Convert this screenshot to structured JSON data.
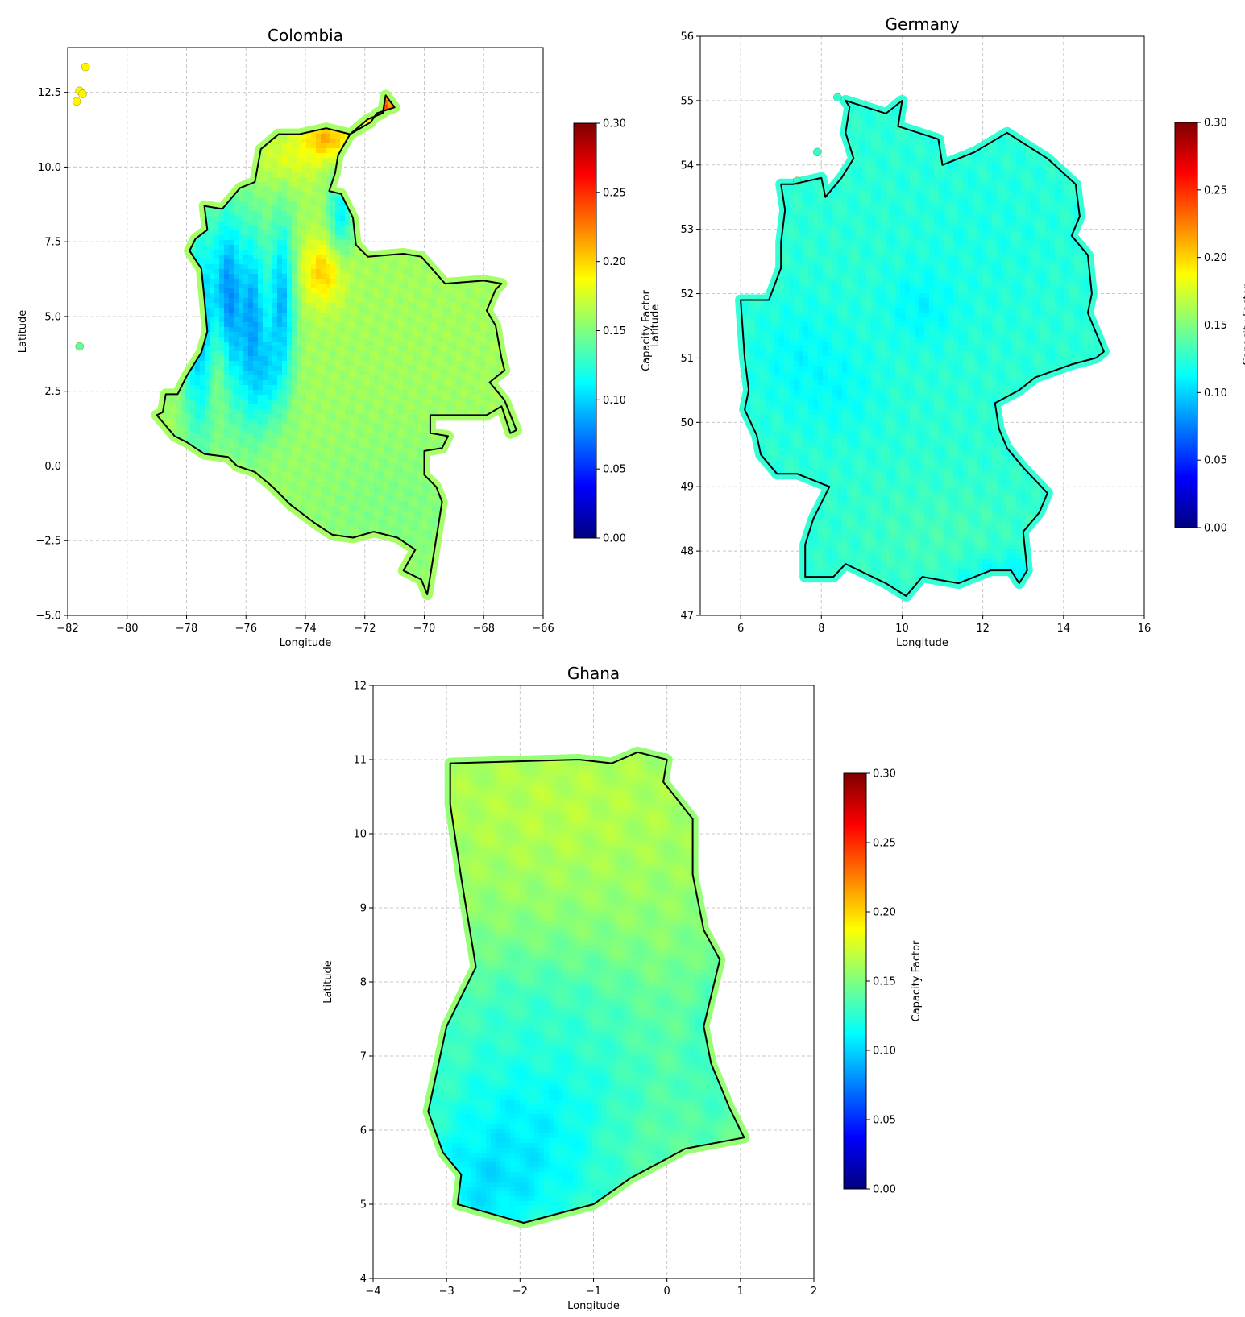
{
  "colors": {
    "grid": "#c8c8c8",
    "border": "#000000",
    "colormap": [
      "#00007f",
      "#0000ff",
      "#007fff",
      "#00ffff",
      "#7fff7f",
      "#ffff00",
      "#ff7f00",
      "#ff0000",
      "#7f0000"
    ]
  },
  "maps": [
    {
      "title": "Colombia",
      "xlabel": "Longitude",
      "ylabel": "Latitude",
      "xlim": [
        -82,
        -66
      ],
      "ylim": [
        -5.0,
        14.0
      ],
      "xticks": [
        -82,
        -80,
        -78,
        -76,
        -74,
        -72,
        -70,
        -68,
        -66
      ],
      "xtick_labels": [
        "−82",
        "−80",
        "−78",
        "−76",
        "−74",
        "−72",
        "−70",
        "−68",
        "−66"
      ],
      "yticks": [
        -5.0,
        -2.5,
        0.0,
        2.5,
        5.0,
        7.5,
        10.0,
        12.5
      ],
      "ytick_labels": [
        "−5.0",
        "−2.5",
        "0.0",
        "2.5",
        "5.0",
        "7.5",
        "10.0",
        "12.5"
      ],
      "grid": true,
      "colorbar": {
        "label": "Capacity Factor",
        "range": [
          0.0,
          0.3
        ],
        "ticks": [
          0.0,
          0.05,
          0.1,
          0.15,
          0.2,
          0.25,
          0.3
        ],
        "tick_labels": [
          "0.00",
          "0.05",
          "0.10",
          "0.15",
          "0.20",
          "0.25",
          "0.30"
        ]
      },
      "border": [
        [
          -71.3,
          12.4
        ],
        [
          -71.0,
          12.0
        ],
        [
          -71.6,
          11.8
        ],
        [
          -71.8,
          11.5
        ],
        [
          -72.5,
          11.1
        ],
        [
          -73.3,
          11.3
        ],
        [
          -74.2,
          11.1
        ],
        [
          -74.9,
          11.1
        ],
        [
          -75.5,
          10.6
        ],
        [
          -75.7,
          9.5
        ],
        [
          -76.2,
          9.3
        ],
        [
          -76.8,
          8.6
        ],
        [
          -77.4,
          8.7
        ],
        [
          -77.3,
          7.9
        ],
        [
          -77.7,
          7.6
        ],
        [
          -77.9,
          7.2
        ],
        [
          -77.5,
          6.6
        ],
        [
          -77.4,
          5.6
        ],
        [
          -77.3,
          4.5
        ],
        [
          -77.5,
          3.8
        ],
        [
          -78.0,
          3.0
        ],
        [
          -78.3,
          2.4
        ],
        [
          -78.7,
          2.4
        ],
        [
          -78.8,
          1.8
        ],
        [
          -79.0,
          1.7
        ],
        [
          -78.4,
          1.0
        ],
        [
          -78.0,
          0.8
        ],
        [
          -77.4,
          0.4
        ],
        [
          -76.6,
          0.3
        ],
        [
          -76.3,
          0.0
        ],
        [
          -75.7,
          -0.2
        ],
        [
          -75.1,
          -0.7
        ],
        [
          -74.5,
          -1.3
        ],
        [
          -73.7,
          -1.9
        ],
        [
          -73.1,
          -2.3
        ],
        [
          -72.4,
          -2.4
        ],
        [
          -71.7,
          -2.2
        ],
        [
          -70.9,
          -2.4
        ],
        [
          -70.3,
          -2.8
        ],
        [
          -70.7,
          -3.5
        ],
        [
          -70.1,
          -3.8
        ],
        [
          -69.9,
          -4.3
        ],
        [
          -69.4,
          -1.2
        ],
        [
          -69.6,
          -0.7
        ],
        [
          -70.0,
          -0.3
        ],
        [
          -70.0,
          0.5
        ],
        [
          -69.4,
          0.6
        ],
        [
          -69.2,
          1.0
        ],
        [
          -69.8,
          1.1
        ],
        [
          -69.8,
          1.7
        ],
        [
          -67.9,
          1.7
        ],
        [
          -67.4,
          2.0
        ],
        [
          -67.1,
          1.1
        ],
        [
          -66.9,
          1.2
        ],
        [
          -67.3,
          2.2
        ],
        [
          -67.8,
          2.8
        ],
        [
          -67.3,
          3.2
        ],
        [
          -67.4,
          3.6
        ],
        [
          -67.6,
          4.7
        ],
        [
          -67.9,
          5.2
        ],
        [
          -67.6,
          5.9
        ],
        [
          -67.4,
          6.1
        ],
        [
          -68.0,
          6.2
        ],
        [
          -69.3,
          6.1
        ],
        [
          -70.1,
          7.0
        ],
        [
          -70.7,
          7.1
        ],
        [
          -71.9,
          7.0
        ],
        [
          -72.3,
          7.4
        ],
        [
          -72.4,
          8.3
        ],
        [
          -72.8,
          9.1
        ],
        [
          -73.2,
          9.2
        ],
        [
          -73.0,
          9.8
        ],
        [
          -72.9,
          10.4
        ],
        [
          -72.5,
          11.1
        ],
        [
          -71.9,
          11.6
        ],
        [
          -71.4,
          11.8
        ],
        [
          -71.3,
          12.4
        ]
      ],
      "islands": [
        [
          -81.6,
          12.55
        ],
        [
          -81.4,
          13.35
        ],
        [
          -81.7,
          12.2
        ],
        [
          -81.5,
          12.45
        ],
        [
          -81.6,
          4.0
        ]
      ],
      "background_value": 0.16,
      "features": [
        {
          "lon": -77.5,
          "lat": 4.5,
          "sx": 0.45,
          "sy": 2.6,
          "value": 0.08,
          "weight": 0.85
        },
        {
          "lon": -76.6,
          "lat": 5.2,
          "sx": 0.35,
          "sy": 2.3,
          "value": 0.05,
          "weight": 0.8
        },
        {
          "lon": -75.8,
          "lat": 4.8,
          "sx": 0.35,
          "sy": 2.3,
          "value": 0.06,
          "weight": 0.75
        },
        {
          "lon": -76.9,
          "lat": 2.8,
          "sx": 0.3,
          "sy": 1.6,
          "value": 0.17,
          "weight": 0.6
        },
        {
          "lon": -74.8,
          "lat": 5.5,
          "sx": 0.3,
          "sy": 2.0,
          "value": 0.06,
          "weight": 0.7
        },
        {
          "lon": -75.3,
          "lat": 3.2,
          "sx": 0.4,
          "sy": 1.2,
          "value": 0.08,
          "weight": 0.65
        },
        {
          "lon": -73.4,
          "lat": 6.5,
          "sx": 0.5,
          "sy": 0.8,
          "value": 0.22,
          "weight": 0.7
        },
        {
          "lon": -73.3,
          "lat": 10.9,
          "sx": 0.6,
          "sy": 0.45,
          "value": 0.23,
          "weight": 0.8
        },
        {
          "lon": -71.6,
          "lat": 12.0,
          "sx": 0.5,
          "sy": 0.35,
          "value": 0.27,
          "weight": 0.9
        },
        {
          "lon": -74.5,
          "lat": 10.3,
          "sx": 0.9,
          "sy": 0.6,
          "value": 0.19,
          "weight": 0.6
        },
        {
          "lon": -72.8,
          "lat": 8.5,
          "sx": 0.3,
          "sy": 1.0,
          "value": 0.08,
          "weight": 0.6
        },
        {
          "lon": -71.0,
          "lat": -1.5,
          "sx": 2.5,
          "sy": 2.0,
          "value": 0.14,
          "weight": 0.5
        }
      ]
    },
    {
      "title": "Germany",
      "xlabel": "Longitude",
      "ylabel": "Latitude",
      "xlim": [
        5,
        16
      ],
      "ylim": [
        47,
        56
      ],
      "xticks": [
        6,
        8,
        10,
        12,
        14,
        16
      ],
      "xtick_labels": [
        "6",
        "8",
        "10",
        "12",
        "14",
        "16"
      ],
      "yticks": [
        47,
        48,
        49,
        50,
        51,
        52,
        53,
        54,
        55,
        56
      ],
      "ytick_labels": [
        "47",
        "48",
        "49",
        "50",
        "51",
        "52",
        "53",
        "54",
        "55",
        "56"
      ],
      "grid": true,
      "colorbar": {
        "label": "Capacity Factor",
        "range": [
          0.0,
          0.3
        ],
        "ticks": [
          0.0,
          0.05,
          0.1,
          0.15,
          0.2,
          0.25,
          0.3
        ],
        "tick_labels": [
          "0.00",
          "0.05",
          "0.10",
          "0.15",
          "0.20",
          "0.25",
          "0.30"
        ]
      },
      "border": [
        [
          8.6,
          55.0
        ],
        [
          9.6,
          54.8
        ],
        [
          10.0,
          55.0
        ],
        [
          9.9,
          54.6
        ],
        [
          10.9,
          54.4
        ],
        [
          11.0,
          54.0
        ],
        [
          11.8,
          54.2
        ],
        [
          12.6,
          54.5
        ],
        [
          13.6,
          54.1
        ],
        [
          14.3,
          53.7
        ],
        [
          14.4,
          53.2
        ],
        [
          14.2,
          52.9
        ],
        [
          14.6,
          52.6
        ],
        [
          14.7,
          52.0
        ],
        [
          14.6,
          51.7
        ],
        [
          15.0,
          51.1
        ],
        [
          14.8,
          51.0
        ],
        [
          14.2,
          50.9
        ],
        [
          13.3,
          50.7
        ],
        [
          12.9,
          50.5
        ],
        [
          12.3,
          50.3
        ],
        [
          12.4,
          49.9
        ],
        [
          12.6,
          49.6
        ],
        [
          13.0,
          49.3
        ],
        [
          13.6,
          48.9
        ],
        [
          13.4,
          48.6
        ],
        [
          13.0,
          48.3
        ],
        [
          13.1,
          47.7
        ],
        [
          12.9,
          47.5
        ],
        [
          12.7,
          47.7
        ],
        [
          12.2,
          47.7
        ],
        [
          11.4,
          47.5
        ],
        [
          10.5,
          47.6
        ],
        [
          10.1,
          47.3
        ],
        [
          9.6,
          47.5
        ],
        [
          8.6,
          47.8
        ],
        [
          8.3,
          47.6
        ],
        [
          7.6,
          47.6
        ],
        [
          7.6,
          48.1
        ],
        [
          7.8,
          48.5
        ],
        [
          8.2,
          49.0
        ],
        [
          7.4,
          49.2
        ],
        [
          6.9,
          49.2
        ],
        [
          6.5,
          49.5
        ],
        [
          6.4,
          49.8
        ],
        [
          6.1,
          50.2
        ],
        [
          6.2,
          50.5
        ],
        [
          6.1,
          51.0
        ],
        [
          6.0,
          51.9
        ],
        [
          6.7,
          51.9
        ],
        [
          7.0,
          52.4
        ],
        [
          7.0,
          52.8
        ],
        [
          7.1,
          53.3
        ],
        [
          7.0,
          53.7
        ],
        [
          7.3,
          53.7
        ],
        [
          8.0,
          53.8
        ],
        [
          8.1,
          53.5
        ],
        [
          8.5,
          53.8
        ],
        [
          8.8,
          54.1
        ],
        [
          8.6,
          54.5
        ],
        [
          8.7,
          54.9
        ],
        [
          8.6,
          55.0
        ]
      ],
      "islands": [
        [
          8.4,
          55.05
        ],
        [
          7.4,
          53.75
        ],
        [
          7.9,
          54.2
        ]
      ],
      "background_value": 0.125,
      "features": [
        {
          "lon": 7.5,
          "lat": 51.0,
          "sx": 0.8,
          "sy": 0.6,
          "value": 0.105,
          "weight": 0.6
        },
        {
          "lon": 8.5,
          "lat": 50.5,
          "sx": 0.7,
          "sy": 0.5,
          "value": 0.108,
          "weight": 0.55
        },
        {
          "lon": 10.5,
          "lat": 51.8,
          "sx": 0.6,
          "sy": 0.4,
          "value": 0.1,
          "weight": 0.6
        },
        {
          "lon": 12.5,
          "lat": 47.6,
          "sx": 0.9,
          "sy": 0.25,
          "value": 0.09,
          "weight": 0.7
        },
        {
          "lon": 11.0,
          "lat": 48.2,
          "sx": 1.5,
          "sy": 0.6,
          "value": 0.14,
          "weight": 0.5
        },
        {
          "lon": 12.0,
          "lat": 52.8,
          "sx": 1.5,
          "sy": 1.0,
          "value": 0.115,
          "weight": 0.4
        }
      ]
    },
    {
      "title": "Ghana",
      "xlabel": "Longitude",
      "ylabel": "Latitude",
      "xlim": [
        -4,
        2
      ],
      "ylim": [
        4,
        12
      ],
      "xticks": [
        -4,
        -3,
        -2,
        -1,
        0,
        1,
        2
      ],
      "xtick_labels": [
        "−4",
        "−3",
        "−2",
        "−1",
        "0",
        "1",
        "2"
      ],
      "yticks": [
        4,
        5,
        6,
        7,
        8,
        9,
        10,
        11,
        12
      ],
      "ytick_labels": [
        "4",
        "5",
        "6",
        "7",
        "8",
        "9",
        "10",
        "11",
        "12"
      ],
      "grid": true,
      "colorbar": {
        "label": "Capacity Factor",
        "range": [
          0.0,
          0.3
        ],
        "ticks": [
          0.0,
          0.05,
          0.1,
          0.15,
          0.2,
          0.25,
          0.3
        ],
        "tick_labels": [
          "0.00",
          "0.05",
          "0.10",
          "0.15",
          "0.20",
          "0.25",
          "0.30"
        ]
      },
      "border": [
        [
          -2.95,
          10.95
        ],
        [
          -1.2,
          11.0
        ],
        [
          -0.75,
          10.95
        ],
        [
          -0.4,
          11.1
        ],
        [
          0.0,
          11.0
        ],
        [
          -0.05,
          10.7
        ],
        [
          0.35,
          10.2
        ],
        [
          0.35,
          9.45
        ],
        [
          0.5,
          8.7
        ],
        [
          0.72,
          8.3
        ],
        [
          0.5,
          7.4
        ],
        [
          0.6,
          6.9
        ],
        [
          0.85,
          6.3
        ],
        [
          1.05,
          5.9
        ],
        [
          0.25,
          5.75
        ],
        [
          -0.5,
          5.35
        ],
        [
          -1.0,
          5.0
        ],
        [
          -1.95,
          4.75
        ],
        [
          -2.85,
          5.0
        ],
        [
          -2.8,
          5.4
        ],
        [
          -3.05,
          5.7
        ],
        [
          -3.25,
          6.25
        ],
        [
          -3.0,
          7.4
        ],
        [
          -2.6,
          8.2
        ],
        [
          -2.8,
          9.4
        ],
        [
          -2.95,
          10.4
        ],
        [
          -2.95,
          10.95
        ]
      ],
      "islands": [],
      "background_value": 0.155,
      "features": [
        {
          "lon": -1.8,
          "lat": 6.0,
          "sx": 1.4,
          "sy": 1.2,
          "value": 0.095,
          "weight": 0.75
        },
        {
          "lon": -2.5,
          "lat": 5.2,
          "sx": 0.6,
          "sy": 0.5,
          "value": 0.085,
          "weight": 0.5
        },
        {
          "lon": -1.8,
          "lat": 7.6,
          "sx": 1.2,
          "sy": 0.6,
          "value": 0.12,
          "weight": 0.5
        },
        {
          "lon": 0.6,
          "lat": 7.0,
          "sx": 0.3,
          "sy": 1.0,
          "value": 0.11,
          "weight": 0.45
        },
        {
          "lon": -0.3,
          "lat": 5.9,
          "sx": 0.6,
          "sy": 0.4,
          "value": 0.145,
          "weight": 0.4
        },
        {
          "lon": -1.5,
          "lat": 10.4,
          "sx": 1.6,
          "sy": 0.8,
          "value": 0.175,
          "weight": 0.55
        }
      ]
    }
  ]
}
